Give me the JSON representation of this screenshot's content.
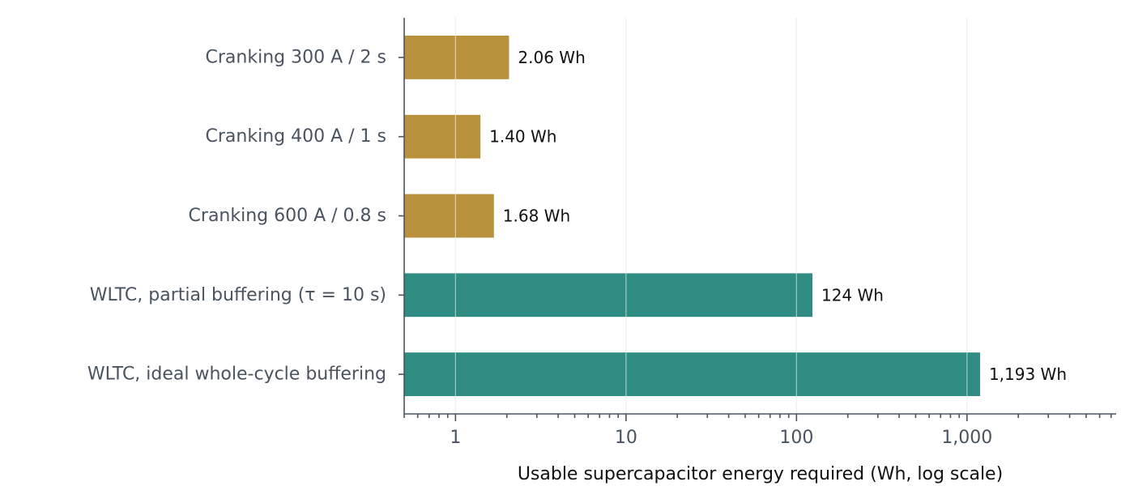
{
  "chart_data": {
    "type": "bar",
    "orientation": "horizontal",
    "title": "",
    "xlabel": "Usable supercapacitor energy required (Wh, log scale)",
    "ylabel": "",
    "xscale": "log",
    "xlim": [
      0.5,
      7500
    ],
    "grid": "vertical major",
    "categories": [
      "Cranking 300 A / 2 s",
      "Cranking 400 A / 1 s",
      "Cranking 600 A / 0.8 s",
      "WLTC, partial buffering (τ = 10 s)",
      "WLTC, ideal whole-cycle buffering"
    ],
    "values": [
      2.06,
      1.4,
      1.68,
      124,
      1193
    ],
    "value_labels": [
      "2.06 Wh",
      "1.40 Wh",
      "1.68 Wh",
      "124 Wh",
      "1,193 Wh"
    ],
    "bar_colors": [
      "#b8913d",
      "#b8913d",
      "#b8913d",
      "#2e8c83",
      "#2e8c83"
    ],
    "major_ticks": [
      {
        "value": 1,
        "label": "1"
      },
      {
        "value": 10,
        "label": "10"
      },
      {
        "value": 100,
        "label": "100"
      },
      {
        "value": 1000,
        "label": "1,000"
      }
    ]
  }
}
